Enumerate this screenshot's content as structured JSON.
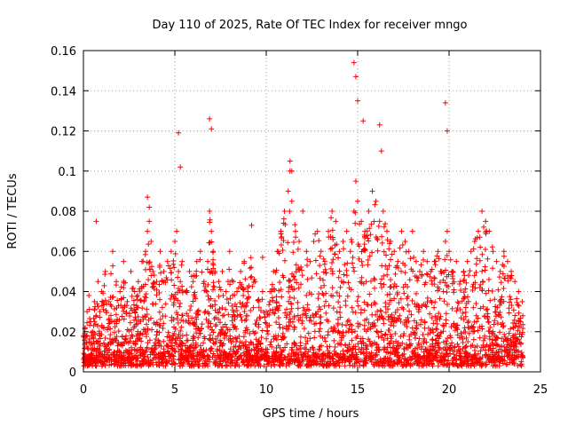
{
  "chart_data": {
    "type": "scatter",
    "title": "Day 110 of 2025, Rate Of TEC Index for receiver mngo",
    "xlabel": "GPS time / hours",
    "ylabel": "ROTI / TECUs",
    "xlim": [
      0,
      25
    ],
    "ylim": [
      0,
      0.16
    ],
    "xticks": [
      0,
      5,
      10,
      15,
      20,
      25
    ],
    "xtick_labels": [
      "0",
      "5",
      "10",
      "15",
      "20",
      "25"
    ],
    "yticks": [
      0,
      0.02,
      0.04,
      0.06,
      0.08,
      0.1,
      0.12,
      0.14,
      0.16
    ],
    "ytick_labels": [
      "0",
      "0.02",
      "0.04",
      "0.06",
      "0.08",
      "0.1",
      "0.12",
      "0.14",
      "0.16"
    ],
    "grid": true,
    "marker": "+",
    "color": "#ff0000",
    "series": [
      {
        "name": "ROTI",
        "x": [
          0.0,
          0.1,
          0.2,
          0.3,
          0.4,
          0.5,
          0.6,
          0.7,
          0.8,
          0.9,
          1.0,
          1.2,
          1.4,
          1.6,
          1.8,
          2.0,
          2.2,
          2.4,
          2.6,
          2.8,
          3.0,
          3.2,
          3.4,
          3.5,
          3.6,
          3.7,
          3.8,
          4.0,
          4.2,
          4.4,
          4.6,
          4.8,
          5.0,
          5.1,
          5.2,
          5.3,
          5.4,
          5.6,
          5.8,
          6.0,
          6.2,
          6.4,
          6.6,
          6.8,
          6.9,
          7.0,
          7.1,
          7.2,
          7.4,
          7.6,
          7.8,
          8.0,
          8.2,
          8.4,
          8.6,
          8.8,
          9.0,
          9.2,
          9.4,
          9.6,
          9.8,
          10.0,
          10.2,
          10.4,
          10.6,
          10.8,
          11.0,
          11.2,
          11.3,
          11.4,
          11.6,
          11.8,
          12.0,
          12.2,
          12.4,
          12.6,
          12.8,
          13.0,
          13.2,
          13.4,
          13.6,
          13.8,
          14.0,
          14.2,
          14.4,
          14.6,
          14.8,
          14.9,
          15.0,
          15.2,
          15.4,
          15.6,
          15.8,
          16.0,
          16.2,
          16.4,
          16.6,
          16.8,
          17.0,
          17.2,
          17.4,
          17.6,
          17.8,
          18.0,
          18.2,
          18.4,
          18.6,
          18.8,
          19.0,
          19.2,
          19.4,
          19.6,
          19.8,
          19.9,
          20.0,
          20.2,
          20.4,
          20.6,
          20.8,
          21.0,
          21.2,
          21.4,
          21.6,
          21.8,
          22.0,
          22.2,
          22.4,
          22.6,
          22.8,
          23.0,
          23.2,
          23.4,
          23.6,
          23.8,
          24.0,
          0.7,
          5.2,
          5.3,
          6.9,
          7.0,
          14.8,
          14.9,
          15.0,
          15.3,
          16.2,
          16.3,
          19.8,
          19.9,
          11.3,
          11.4,
          3.5,
          3.6,
          9.8
        ],
        "y": [
          0.018,
          0.022,
          0.03,
          0.038,
          0.025,
          0.02,
          0.035,
          0.028,
          0.045,
          0.03,
          0.04,
          0.05,
          0.035,
          0.06,
          0.045,
          0.04,
          0.055,
          0.035,
          0.05,
          0.04,
          0.045,
          0.055,
          0.06,
          0.07,
          0.075,
          0.065,
          0.05,
          0.045,
          0.06,
          0.05,
          0.055,
          0.06,
          0.065,
          0.07,
          0.05,
          0.045,
          0.055,
          0.04,
          0.05,
          0.045,
          0.055,
          0.06,
          0.045,
          0.055,
          0.08,
          0.07,
          0.06,
          0.05,
          0.045,
          0.05,
          0.04,
          0.06,
          0.045,
          0.04,
          0.05,
          0.055,
          0.04,
          0.073,
          0.045,
          0.035,
          0.04,
          0.03,
          0.04,
          0.05,
          0.06,
          0.07,
          0.08,
          0.09,
          0.1,
          0.085,
          0.07,
          0.065,
          0.08,
          0.06,
          0.055,
          0.065,
          0.07,
          0.06,
          0.055,
          0.07,
          0.08,
          0.075,
          0.06,
          0.065,
          0.07,
          0.06,
          0.08,
          0.095,
          0.085,
          0.075,
          0.07,
          0.08,
          0.09,
          0.085,
          0.075,
          0.08,
          0.07,
          0.065,
          0.06,
          0.055,
          0.07,
          0.065,
          0.06,
          0.07,
          0.055,
          0.05,
          0.06,
          0.055,
          0.05,
          0.055,
          0.06,
          0.05,
          0.065,
          0.07,
          0.06,
          0.05,
          0.055,
          0.045,
          0.05,
          0.055,
          0.06,
          0.065,
          0.07,
          0.08,
          0.075,
          0.07,
          0.06,
          0.055,
          0.05,
          0.06,
          0.055,
          0.05,
          0.045,
          0.04,
          0.035,
          0.075,
          0.119,
          0.102,
          0.126,
          0.121,
          0.154,
          0.147,
          0.135,
          0.125,
          0.123,
          0.11,
          0.134,
          0.12,
          0.105,
          0.1,
          0.087,
          0.082,
          0.057
        ]
      }
    ]
  }
}
